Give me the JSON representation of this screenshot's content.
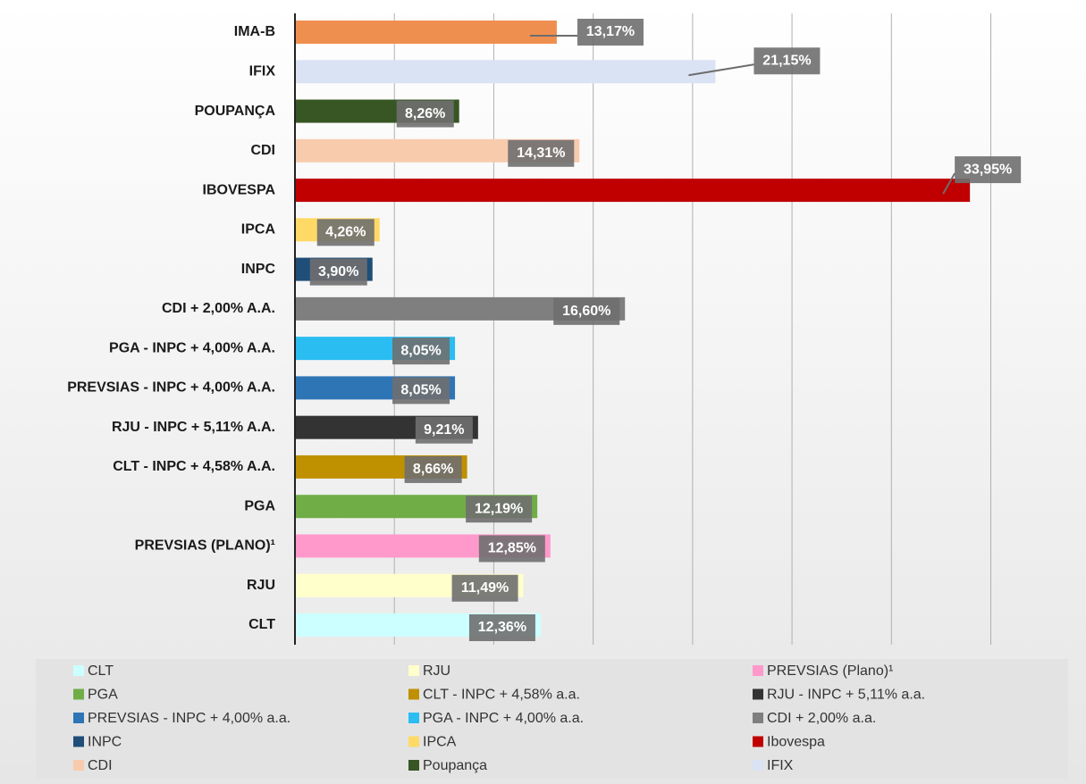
{
  "chart_data": {
    "type": "barh",
    "categories": [
      "CLT",
      "RJU",
      "PREVSIAS (PLANO)¹",
      "PGA",
      "CLT - INPC + 4,58% A.A.",
      "RJU - INPC + 5,11% A.A.",
      "PREVSIAS -  INPC + 4,00% A.A.",
      "PGA - INPC + 4,00% A.A.",
      "CDI + 2,00% A.A.",
      "INPC",
      "IPCA",
      "IBOVESPA",
      "CDI",
      "POUPANÇA",
      "IFIX",
      "IMA-B"
    ],
    "values": [
      12.36,
      11.49,
      12.85,
      12.19,
      8.66,
      9.21,
      8.05,
      8.05,
      16.6,
      3.9,
      4.26,
      33.95,
      14.31,
      8.26,
      21.15,
      13.17
    ],
    "value_labels": [
      "12,36%",
      "11,49%",
      "12,85%",
      "12,19%",
      "8,66%",
      "9,21%",
      "8,05%",
      "8,05%",
      "16,60%",
      "3,90%",
      "4,26%",
      "33,95%",
      "14,31%",
      "8,26%",
      "21,15%",
      "13,17%"
    ],
    "colors": [
      "#ccffff",
      "#ffffcc",
      "#ff99cc",
      "#70ad47",
      "#bf9000",
      "#333333",
      "#2e75b6",
      "#29bdf2",
      "#7f7f7f",
      "#1f4e79",
      "#ffd966",
      "#c00000",
      "#f8cbad",
      "#375623",
      "#dae3f3",
      "#ef8f4f"
    ],
    "legend": [
      "CLT",
      "RJU",
      "PREVSIAS (Plano)¹",
      "PGA",
      "CLT - INPC + 4,58% a.a.",
      "RJU - INPC + 5,11% a.a.",
      "PREVSIAS -  INPC + 4,00% a.a.",
      "PGA - INPC + 4,00% a.a.",
      "CDI + 2,00% a.a.",
      "INPC",
      "IPCA",
      "Ibovespa",
      "CDI",
      "Poupança",
      "IFIX"
    ],
    "xlim": [
      0,
      35
    ],
    "xticks": [
      0,
      5,
      10,
      15,
      20,
      25,
      30,
      35
    ],
    "grid": true
  }
}
